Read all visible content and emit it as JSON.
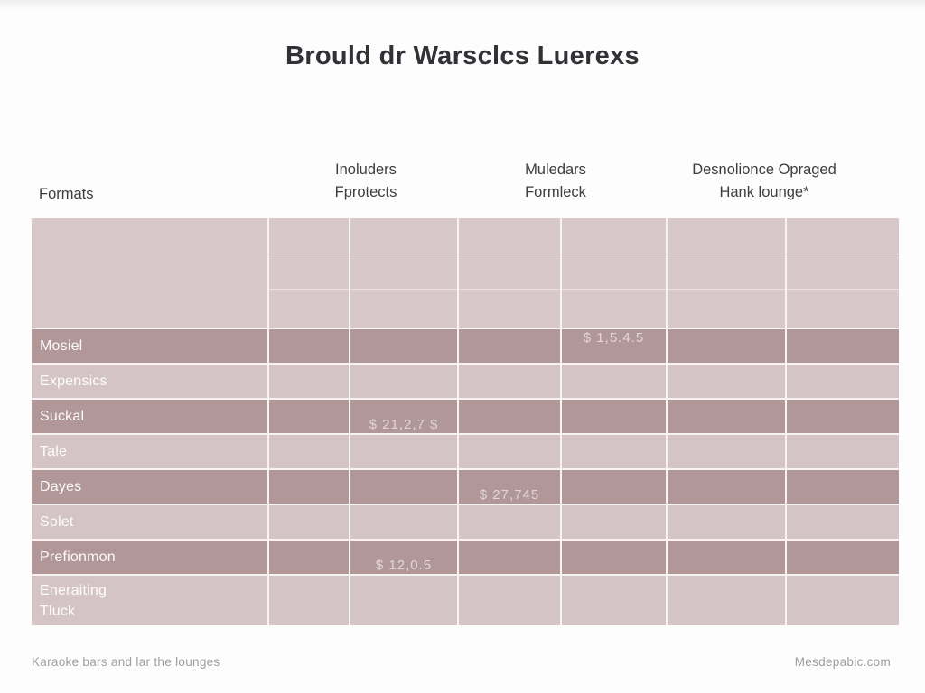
{
  "page": {
    "title": "Brould dr Warsclcs Luerexs"
  },
  "columns": [
    {
      "line1": "Formats",
      "line2": ""
    },
    {
      "line1": "Inoluders",
      "line2": "Fprotects"
    },
    {
      "line1": "Muledars",
      "line2": "Formleck"
    },
    {
      "line1": "Desnolionce Opraged",
      "line2": "Hank lounge*"
    }
  ],
  "table": {
    "rows": [
      {
        "label": "Mosiel",
        "cells": [
          "",
          "",
          "",
          "$ 1,5.4.5",
          "",
          ""
        ]
      },
      {
        "label": "Expensics",
        "cells": [
          "",
          "",
          "",
          "",
          "",
          ""
        ]
      },
      {
        "label": "Suckal",
        "cells": [
          "",
          "$ 21,2,7 $",
          "",
          "",
          "",
          ""
        ]
      },
      {
        "label": "Tale",
        "cells": [
          "",
          "",
          "",
          "",
          "",
          ""
        ]
      },
      {
        "label": "Dayes",
        "cells": [
          "",
          "",
          "$ 27,745",
          "",
          "",
          ""
        ]
      },
      {
        "label": "Solet",
        "cells": [
          "",
          "",
          "",
          "",
          "",
          ""
        ]
      },
      {
        "label": "Prefionmon",
        "cells": [
          "",
          "$ 12,0.5",
          "",
          "",
          "",
          ""
        ]
      },
      {
        "label": "Eneraiting\nTluck",
        "cells": [
          "",
          "",
          "",
          "",
          "",
          ""
        ]
      }
    ]
  },
  "footer": {
    "left": "Karaoke bars and lar the lounges",
    "right": "Mesdepabic.com"
  },
  "colors": {
    "row_dark": "#b29798",
    "row_light": "#d5c4c6",
    "header_block": "#d9c8c9",
    "grid_line": "#f8f3f3",
    "title_text": "#333036",
    "header_text": "#3d3d3f",
    "row_label_text": "#ffffff",
    "value_text": "#e7dada",
    "footer_text": "#9e9e9e"
  }
}
